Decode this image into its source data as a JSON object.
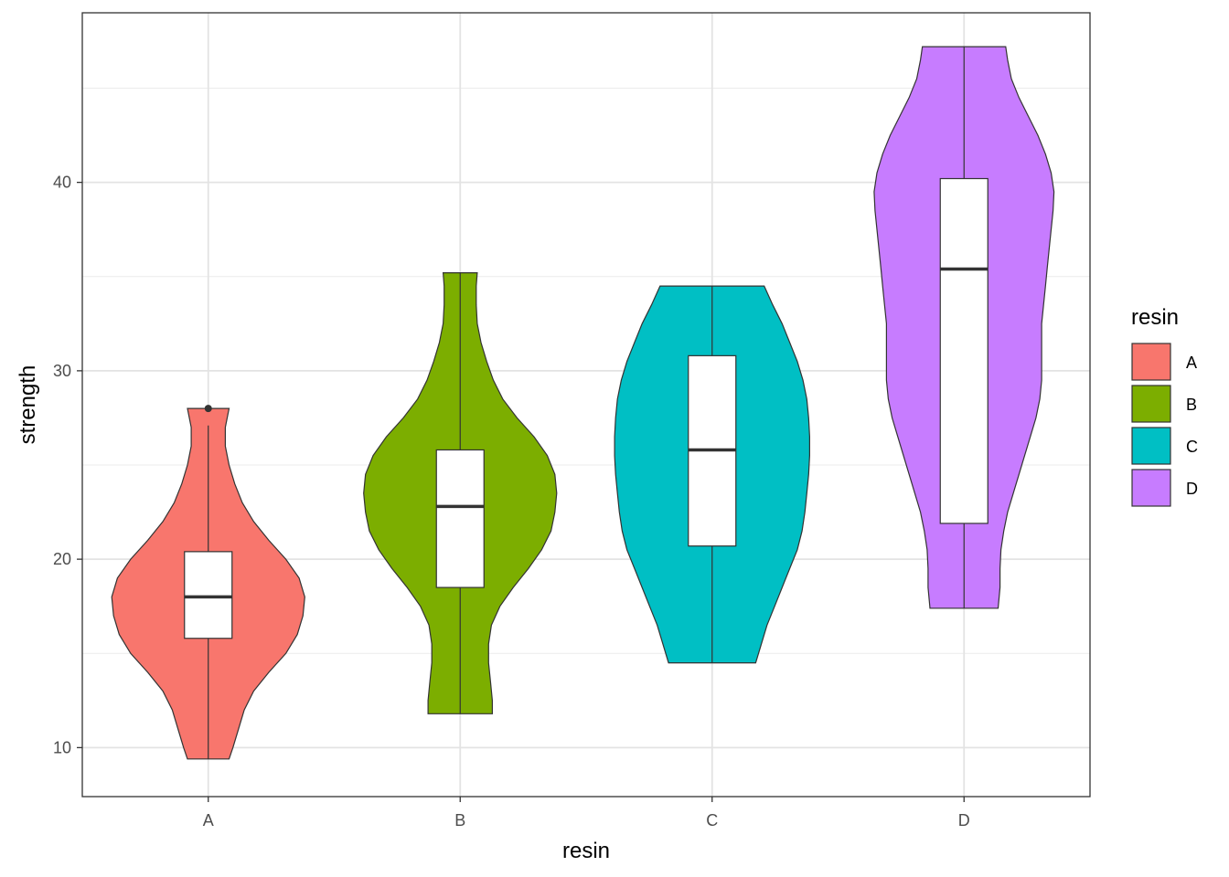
{
  "chart_data": {
    "type": "violin",
    "xlabel": "resin",
    "ylabel": "strength",
    "ylim": [
      7.4,
      49.0
    ],
    "yticks": [
      10,
      20,
      30,
      40
    ],
    "categories": [
      "A",
      "B",
      "C",
      "D"
    ],
    "legend": {
      "title": "resin",
      "position": "right",
      "entries": [
        "A",
        "B",
        "C",
        "D"
      ]
    },
    "grid": true,
    "colors": {
      "A": "#F8766D",
      "B": "#7CAE00",
      "C": "#00BFC4",
      "D": "#C77CFF"
    },
    "groups": [
      {
        "name": "A",
        "violin_min": 9.4,
        "violin_max": 28.0,
        "box": {
          "whisker_low": 9.4,
          "q1": 15.8,
          "median": 18.0,
          "q3": 20.4,
          "whisker_high": 27.1
        },
        "outliers": [
          28.0
        ],
        "density": [
          [
            9.4,
            0.22
          ],
          [
            10,
            0.26
          ],
          [
            11,
            0.32
          ],
          [
            12,
            0.38
          ],
          [
            13,
            0.48
          ],
          [
            14,
            0.64
          ],
          [
            15,
            0.82
          ],
          [
            16,
            0.94
          ],
          [
            17,
            1.0
          ],
          [
            18,
            1.02
          ],
          [
            19,
            0.96
          ],
          [
            20,
            0.82
          ],
          [
            21,
            0.64
          ],
          [
            22,
            0.48
          ],
          [
            23,
            0.36
          ],
          [
            24,
            0.28
          ],
          [
            25,
            0.22
          ],
          [
            26,
            0.18
          ],
          [
            27,
            0.18
          ],
          [
            28,
            0.22
          ]
        ]
      },
      {
        "name": "B",
        "violin_min": 11.8,
        "violin_max": 35.2,
        "box": {
          "whisker_low": 11.8,
          "q1": 18.5,
          "median": 22.8,
          "q3": 25.8,
          "whisker_high": 35.2
        },
        "outliers": [],
        "density": [
          [
            11.8,
            0.34
          ],
          [
            12.5,
            0.34
          ],
          [
            13.5,
            0.32
          ],
          [
            14.5,
            0.3
          ],
          [
            15.5,
            0.3
          ],
          [
            16.5,
            0.33
          ],
          [
            17.5,
            0.42
          ],
          [
            18.5,
            0.56
          ],
          [
            19.5,
            0.72
          ],
          [
            20.5,
            0.86
          ],
          [
            21.5,
            0.96
          ],
          [
            22.5,
            1.0
          ],
          [
            23.5,
            1.02
          ],
          [
            24.5,
            1.0
          ],
          [
            25.5,
            0.92
          ],
          [
            26.5,
            0.78
          ],
          [
            27.5,
            0.6
          ],
          [
            28.5,
            0.45
          ],
          [
            29.5,
            0.35
          ],
          [
            30.5,
            0.28
          ],
          [
            31.5,
            0.22
          ],
          [
            32.5,
            0.18
          ],
          [
            33.5,
            0.17
          ],
          [
            34.5,
            0.17
          ],
          [
            35.2,
            0.18
          ]
        ]
      },
      {
        "name": "C",
        "violin_min": 14.5,
        "violin_max": 34.5,
        "box": {
          "whisker_low": 14.5,
          "q1": 20.7,
          "median": 25.8,
          "q3": 30.8,
          "whisker_high": 34.5
        },
        "outliers": [],
        "density": [
          [
            14.5,
            0.46
          ],
          [
            15.5,
            0.52
          ],
          [
            16.5,
            0.58
          ],
          [
            17.5,
            0.66
          ],
          [
            18.5,
            0.74
          ],
          [
            19.5,
            0.82
          ],
          [
            20.5,
            0.9
          ],
          [
            21.5,
            0.95
          ],
          [
            22.5,
            0.98
          ],
          [
            23.5,
            1.0
          ],
          [
            24.5,
            1.02
          ],
          [
            25.5,
            1.03
          ],
          [
            26.5,
            1.03
          ],
          [
            27.5,
            1.02
          ],
          [
            28.5,
            1.0
          ],
          [
            29.5,
            0.96
          ],
          [
            30.5,
            0.9
          ],
          [
            31.5,
            0.82
          ],
          [
            32.5,
            0.74
          ],
          [
            33.5,
            0.64
          ],
          [
            34.5,
            0.55
          ]
        ]
      },
      {
        "name": "D",
        "violin_min": 17.4,
        "violin_max": 47.2,
        "box": {
          "whisker_low": 17.4,
          "q1": 21.9,
          "median": 35.4,
          "q3": 40.2,
          "whisker_high": 47.2
        },
        "outliers": [],
        "density": [
          [
            17.4,
            0.36
          ],
          [
            18.5,
            0.38
          ],
          [
            19.5,
            0.38
          ],
          [
            20.5,
            0.39
          ],
          [
            21.5,
            0.42
          ],
          [
            22.5,
            0.46
          ],
          [
            23.5,
            0.52
          ],
          [
            24.5,
            0.58
          ],
          [
            25.5,
            0.64
          ],
          [
            26.5,
            0.7
          ],
          [
            27.5,
            0.76
          ],
          [
            28.5,
            0.8
          ],
          [
            29.5,
            0.82
          ],
          [
            30.5,
            0.82
          ],
          [
            31.5,
            0.82
          ],
          [
            32.5,
            0.82
          ],
          [
            33.5,
            0.84
          ],
          [
            34.5,
            0.86
          ],
          [
            35.5,
            0.88
          ],
          [
            36.5,
            0.9
          ],
          [
            37.5,
            0.92
          ],
          [
            38.5,
            0.94
          ],
          [
            39.5,
            0.95
          ],
          [
            40.5,
            0.92
          ],
          [
            41.5,
            0.86
          ],
          [
            42.5,
            0.78
          ],
          [
            43.5,
            0.68
          ],
          [
            44.5,
            0.58
          ],
          [
            45.5,
            0.5
          ],
          [
            46.5,
            0.46
          ],
          [
            47.2,
            0.44
          ]
        ]
      }
    ]
  }
}
